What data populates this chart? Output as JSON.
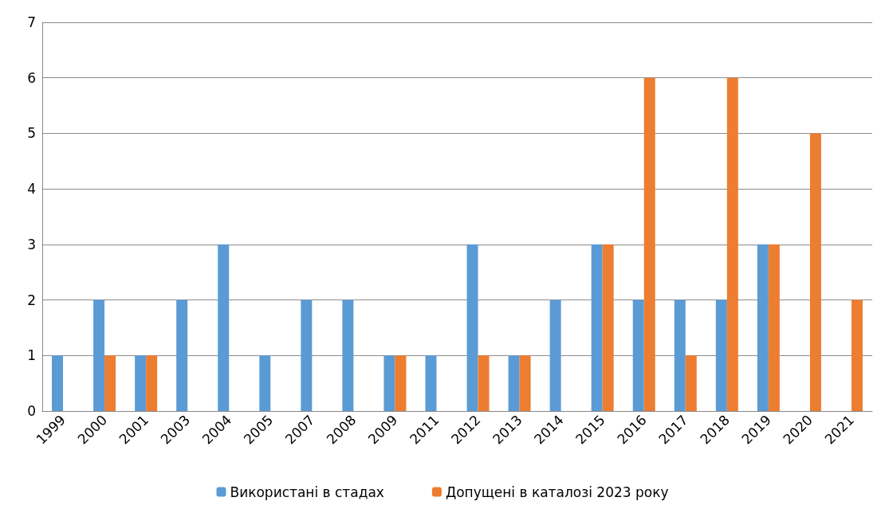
{
  "chart_data": {
    "type": "bar",
    "categories": [
      "1999",
      "2000",
      "2001",
      "2003",
      "2004",
      "2005",
      "2007",
      "2008",
      "2009",
      "2011",
      "2012",
      "2013",
      "2014",
      "2015",
      "2016",
      "2017",
      "2018",
      "2019",
      "2020",
      "2021"
    ],
    "series": [
      {
        "name": "Використані в стадах",
        "color": "#5b9bd5",
        "values": [
          1,
          2,
          1,
          2,
          3,
          1,
          2,
          2,
          1,
          1,
          3,
          1,
          2,
          3,
          2,
          2,
          2,
          3,
          null,
          null
        ]
      },
      {
        "name": "Допущені в каталозі 2023 року",
        "color": "#ed7d31",
        "values": [
          null,
          1,
          1,
          null,
          null,
          null,
          null,
          null,
          1,
          null,
          1,
          1,
          null,
          3,
          6,
          1,
          6,
          3,
          5,
          2
        ]
      }
    ],
    "ylim": [
      0,
      7
    ],
    "yticks": [
      0,
      1,
      2,
      3,
      4,
      5,
      6,
      7
    ],
    "grid": "y",
    "legend": "bottom"
  }
}
